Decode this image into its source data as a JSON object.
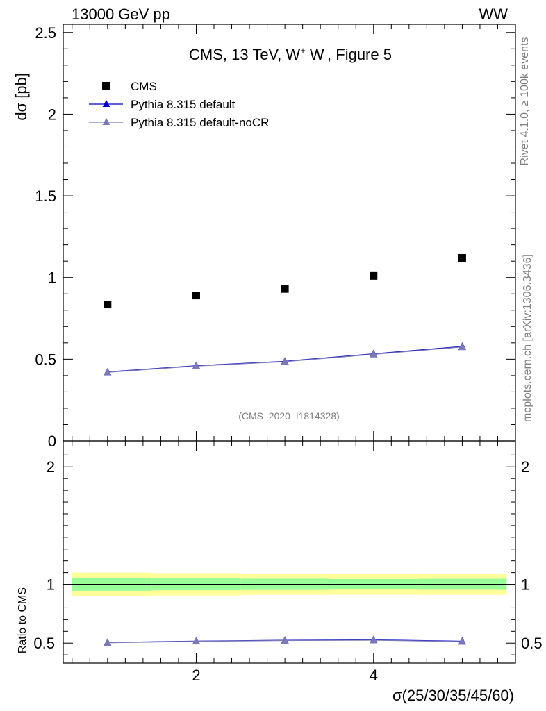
{
  "header": {
    "energy_label": "13000 GeV pp",
    "process_label": "WW"
  },
  "side_labels": {
    "rivet": "Rivet 4.1.0, ≥ 100k events",
    "mcplots": "mcplots.cern.ch [arXiv:1306.3436]"
  },
  "chart_data": {
    "type": "scatter",
    "title": "CMS, 13 TeV, W⁺ W⁻, Figure 5",
    "title_parts": {
      "main": "CMS, 13 TeV, W",
      "sup1": "+",
      "mid": " W",
      "sup2": "-",
      "end": ", Figure 5"
    },
    "analysis_id": "(CMS_2020_I1814328)",
    "xlabel": "σ(25/30/35/45/60)",
    "ylabel_main": "dσ [pb]",
    "ylabel_ratio": "Ratio to CMS",
    "xlim": [
      0.5,
      5.6
    ],
    "ylim_main": [
      0,
      2.55
    ],
    "ylim_ratio": [
      0.33,
      2.22
    ],
    "x_ticks": [
      2,
      4
    ],
    "y_ticks_main": [
      "0",
      "0.5",
      "1",
      "1.5",
      "2",
      "2.5"
    ],
    "y_ticks_ratio": [
      "0.5",
      "1",
      "2"
    ],
    "legend_position": "top-left",
    "series": [
      {
        "name": "CMS",
        "marker": "square",
        "color": "#000000",
        "x": [
          1,
          2,
          3,
          4,
          5
        ],
        "y": [
          0.835,
          0.89,
          0.93,
          1.01,
          1.12
        ]
      },
      {
        "name": "Pythia 8.315 default",
        "marker": "triangle",
        "color": "#0000cc",
        "x": [
          1,
          2,
          3,
          4,
          5
        ],
        "y": [
          0.422,
          0.46,
          0.487,
          0.533,
          0.578
        ],
        "ratio": [
          0.505,
          0.517,
          0.524,
          0.528,
          0.516
        ]
      },
      {
        "name": "Pythia 8.315 default-noCR",
        "marker": "triangle",
        "color": "#7a7ab8",
        "x": [
          1,
          2,
          3,
          4,
          5
        ],
        "y": [
          0.42,
          0.458,
          0.485,
          0.53,
          0.575
        ],
        "ratio": [
          0.503,
          0.515,
          0.522,
          0.525,
          0.513
        ]
      }
    ],
    "uncertainty_bands": {
      "bins": [
        [
          0.5,
          1.5
        ],
        [
          1.5,
          2.5
        ],
        [
          2.5,
          3.5
        ],
        [
          3.5,
          4.5
        ],
        [
          4.5,
          5.5
        ]
      ],
      "stat_half_width": [
        0.055,
        0.05,
        0.048,
        0.045,
        0.047
      ],
      "total_half_width": [
        0.1,
        0.095,
        0.09,
        0.088,
        0.09
      ],
      "stat_color": "#99ff99",
      "total_color": "#ffff99"
    }
  }
}
